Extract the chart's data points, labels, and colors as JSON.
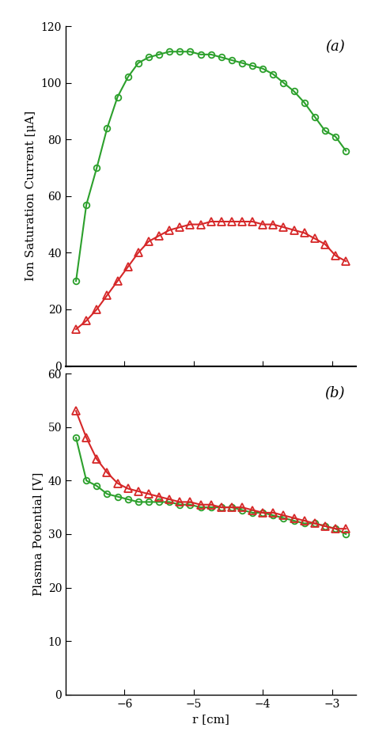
{
  "green_circle_x_a": [
    -6.7,
    -6.55,
    -6.4,
    -6.25,
    -6.1,
    -5.95,
    -5.8,
    -5.65,
    -5.5,
    -5.35,
    -5.2,
    -5.05,
    -4.9,
    -4.75,
    -4.6,
    -4.45,
    -4.3,
    -4.15,
    -4.0,
    -3.85,
    -3.7,
    -3.55,
    -3.4,
    -3.25,
    -3.1,
    -2.95,
    -2.8
  ],
  "green_circle_y_a": [
    30,
    57,
    70,
    84,
    95,
    102,
    107,
    109,
    110,
    111,
    111,
    111,
    110,
    110,
    109,
    108,
    107,
    106,
    105,
    103,
    100,
    97,
    93,
    88,
    83,
    81,
    76
  ],
  "red_tri_x_a": [
    -6.7,
    -6.55,
    -6.4,
    -6.25,
    -6.1,
    -5.95,
    -5.8,
    -5.65,
    -5.5,
    -5.35,
    -5.2,
    -5.05,
    -4.9,
    -4.75,
    -4.6,
    -4.45,
    -4.3,
    -4.15,
    -4.0,
    -3.85,
    -3.7,
    -3.55,
    -3.4,
    -3.25,
    -3.1,
    -2.95,
    -2.8
  ],
  "red_tri_y_a": [
    13,
    16,
    20,
    25,
    30,
    35,
    40,
    44,
    46,
    48,
    49,
    50,
    50,
    51,
    51,
    51,
    51,
    51,
    50,
    50,
    49,
    48,
    47,
    45,
    43,
    39,
    37
  ],
  "green_circle_x_b": [
    -6.7,
    -6.55,
    -6.4,
    -6.25,
    -6.1,
    -5.95,
    -5.8,
    -5.65,
    -5.5,
    -5.35,
    -5.2,
    -5.05,
    -4.9,
    -4.75,
    -4.6,
    -4.45,
    -4.3,
    -4.15,
    -4.0,
    -3.85,
    -3.7,
    -3.55,
    -3.4,
    -3.25,
    -3.1,
    -2.95,
    -2.8
  ],
  "green_circle_y_b": [
    48,
    40,
    39,
    37.5,
    37,
    36.5,
    36,
    36,
    36,
    36,
    35.5,
    35.5,
    35,
    35,
    35,
    35,
    34.5,
    34,
    34,
    33.5,
    33,
    32.5,
    32,
    32,
    31.5,
    31,
    30
  ],
  "red_tri_x_b": [
    -6.7,
    -6.55,
    -6.4,
    -6.25,
    -6.1,
    -5.95,
    -5.8,
    -5.65,
    -5.5,
    -5.35,
    -5.2,
    -5.05,
    -4.9,
    -4.75,
    -4.6,
    -4.45,
    -4.3,
    -4.15,
    -4.0,
    -3.85,
    -3.7,
    -3.55,
    -3.4,
    -3.25,
    -3.1,
    -2.95,
    -2.8
  ],
  "red_tri_y_b": [
    53,
    48,
    44,
    41.5,
    39.5,
    38.5,
    38,
    37.5,
    37,
    36.5,
    36,
    36,
    35.5,
    35.5,
    35,
    35,
    35,
    34.5,
    34,
    34,
    33.5,
    33,
    32.5,
    32,
    31.5,
    31,
    31
  ],
  "green_color": "#2ca02c",
  "red_color": "#d62728",
  "ylabel_a": "Ion Saturation Current [μA]",
  "ylabel_b": "Plasma Potential [V]",
  "xlabel": "r [cm]",
  "label_a": "(a)",
  "label_b": "(b)",
  "xlim": [
    -6.85,
    -2.65
  ],
  "ylim_a": [
    0,
    120
  ],
  "ylim_b": [
    0,
    60
  ],
  "xticks": [
    -6,
    -5,
    -4,
    -3
  ],
  "yticks_a": [
    0,
    20,
    40,
    60,
    80,
    100,
    120
  ],
  "yticks_b": [
    0,
    10,
    20,
    30,
    40,
    50,
    60
  ]
}
